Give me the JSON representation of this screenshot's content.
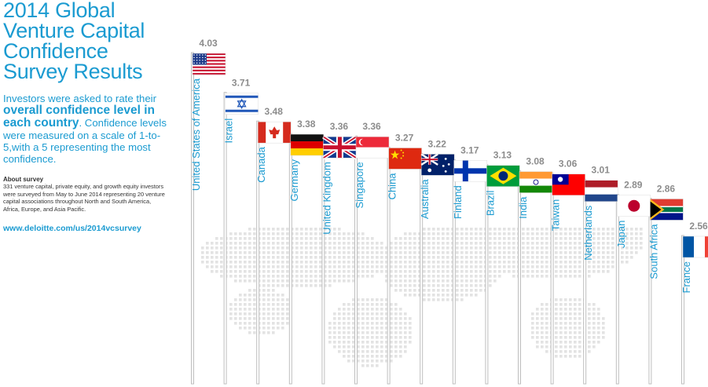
{
  "title_lines": [
    "2014 Global",
    "Venture Capital",
    "Confidence",
    "Survey Results"
  ],
  "description": {
    "part1": "Investors were asked to rate their ",
    "strong": "overall confidence level in each country",
    "part2": ". Confidence levels were measured on a scale of 1-to-5,with a 5 representing the most confidence."
  },
  "about": {
    "heading": "About survey",
    "text": "331 venture capital, private equity, and growth equity investors were surveyed from May to June 2014 representing 20 venture capital associations throughout North and South America, Africa, Europe, and Asia Pacific."
  },
  "url": "www.deloitte.com/us/2014vcsurvey",
  "colors": {
    "accent": "#1b9bd1",
    "value_text": "#8c8c8c",
    "map_dots": "#e3e3e3"
  },
  "chart_data": {
    "type": "bar",
    "categories": [
      "United States of America",
      "Israel",
      "Canada",
      "Germany",
      "United Kingdom",
      "Singapore",
      "China",
      "Australia",
      "Finland",
      "Brazil",
      "India",
      "Taiwan",
      "Netherlands",
      "Japan",
      "South Africa",
      "France"
    ],
    "values": [
      4.03,
      3.71,
      3.48,
      3.38,
      3.36,
      3.36,
      3.27,
      3.22,
      3.17,
      3.13,
      3.08,
      3.06,
      3.01,
      2.89,
      2.86,
      2.56
    ],
    "value_labels": [
      "4.03",
      "3.71",
      "3.48",
      "3.38",
      "3.36",
      "3.36",
      "3.27",
      "3.22",
      "3.17",
      "3.13",
      "3.08",
      "3.06",
      "3.01",
      "2.89",
      "2.86",
      "2.56"
    ],
    "flags": [
      "usa-flag",
      "israel-flag",
      "canada-flag",
      "germany-flag",
      "uk-flag",
      "singapore-flag",
      "china-flag",
      "australia-flag",
      "finland-flag",
      "brazil-flag",
      "india-flag",
      "taiwan-flag",
      "netherlands-flag",
      "japan-flag",
      "south-africa-flag",
      "france-flag"
    ],
    "ylim": [
      1,
      5
    ],
    "grid": false
  }
}
